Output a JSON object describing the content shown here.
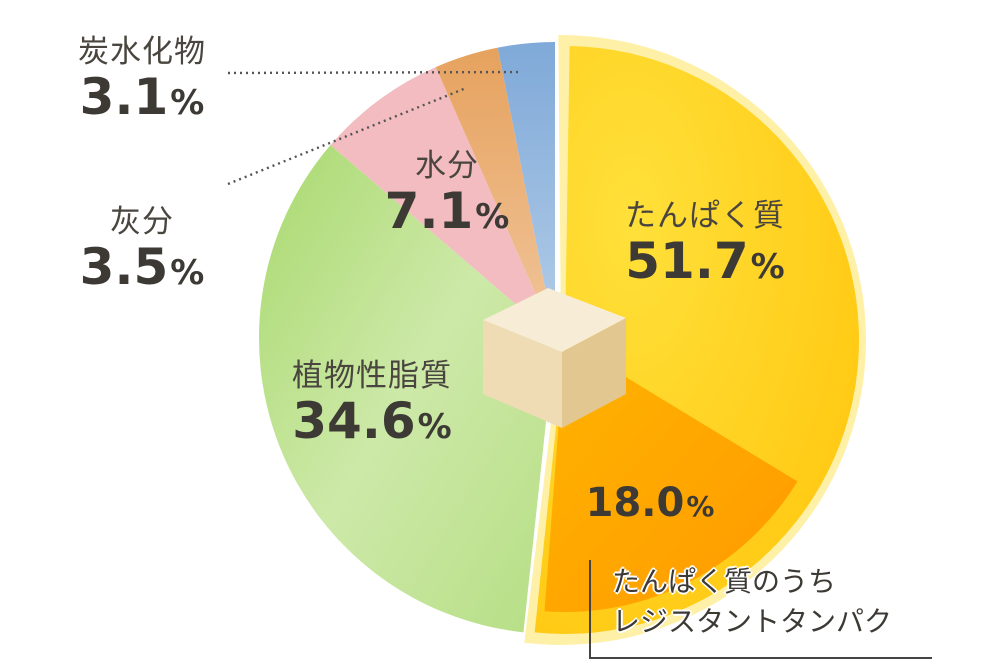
{
  "chart_data": {
    "type": "pie",
    "title": "",
    "categories": [
      "たんぱく質",
      "植物性脂質",
      "水分",
      "灰分",
      "炭水化物"
    ],
    "values": [
      51.7,
      34.6,
      7.1,
      3.5,
      3.1
    ],
    "unit": "%",
    "colors": [
      "#ffc914",
      "#b9e08a",
      "#f2b8bd",
      "#e9b27a",
      "#8fb6de"
    ],
    "sub_slice": {
      "parent": "たんぱく質",
      "label": "たんぱく質のうち レジスタントタンパク",
      "value": 18.0,
      "color": "#ffa000"
    },
    "start_angle_deg": 0,
    "direction": "clockwise",
    "legend": "none (direct labels)"
  },
  "labels": {
    "protein": {
      "name": "たんぱく質",
      "value": "51.7",
      "pct": "%"
    },
    "lipid": {
      "name": "植物性脂質",
      "value": "34.6",
      "pct": "%"
    },
    "water": {
      "name": "水分",
      "value": "7.1",
      "pct": "%"
    },
    "ash": {
      "name": "灰分",
      "value": "3.5",
      "pct": "%"
    },
    "carbs": {
      "name": "炭水化物",
      "value": "3.1",
      "pct": "%"
    },
    "resistant": {
      "value": "18.0",
      "pct": "%",
      "line1": "たんぱく質のうち",
      "line2": "レジスタントタンパク"
    }
  }
}
